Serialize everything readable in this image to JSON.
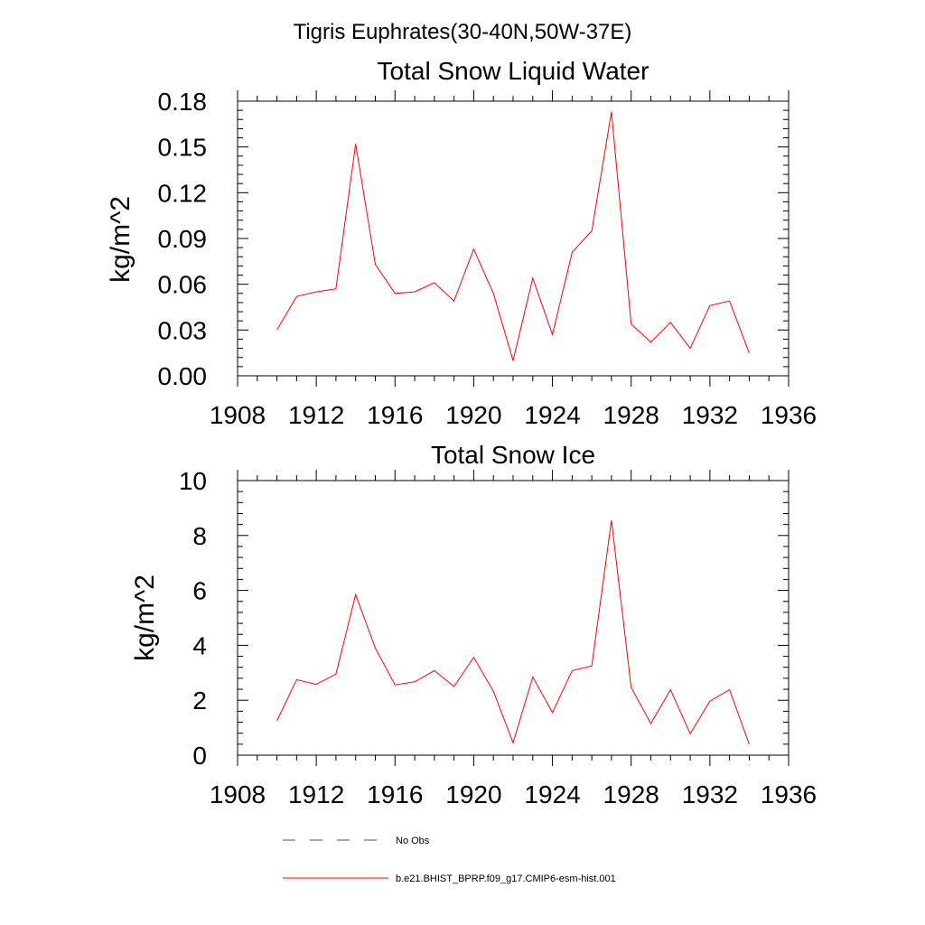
{
  "figure": {
    "main_title": "Tigris Euphrates(30-40N,50W-37E)"
  },
  "colors": {
    "series": "#ff0000",
    "obs": "#4a4a8a",
    "axis": "#000000"
  },
  "legend": {
    "entries": [
      {
        "label": "No Obs",
        "style": "dashed"
      },
      {
        "label": "b.e21.BHIST_BPRP.f09_g17.CMIP6-esm-hist.001",
        "style": "solid"
      }
    ]
  },
  "chart_data": [
    {
      "type": "line",
      "title": "Total Snow Liquid Water",
      "ylabel": "kg/m^2",
      "xlabel": "",
      "xlim": [
        1908,
        1936
      ],
      "ylim": [
        0,
        0.18
      ],
      "xticks": [
        1908,
        1912,
        1916,
        1920,
        1924,
        1928,
        1932,
        1936
      ],
      "xtick_labels": [
        "1908",
        "1912",
        "1916",
        "1920",
        "1924",
        "1928",
        "1932",
        "1936"
      ],
      "yticks": [
        0,
        0.03,
        0.06,
        0.09,
        0.12,
        0.15,
        0.18
      ],
      "ytick_labels": [
        "0.00",
        "0.03",
        "0.06",
        "0.09",
        "0.12",
        "0.15",
        "0.18"
      ],
      "grid": false,
      "series": [
        {
          "name": "b.e21.BHIST_BPRP.f09_g17.CMIP6-esm-hist.001",
          "x": [
            1910,
            1911,
            1912,
            1913,
            1914,
            1915,
            1916,
            1917,
            1918,
            1919,
            1920,
            1921,
            1922,
            1923,
            1924,
            1925,
            1926,
            1927,
            1928,
            1929,
            1930,
            1931,
            1932,
            1933,
            1934
          ],
          "y": [
            0.03,
            0.052,
            0.055,
            0.057,
            0.152,
            0.073,
            0.054,
            0.055,
            0.061,
            0.049,
            0.083,
            0.054,
            0.01,
            0.064,
            0.027,
            0.081,
            0.095,
            0.173,
            0.034,
            0.022,
            0.035,
            0.018,
            0.046,
            0.049,
            0.015
          ]
        }
      ]
    },
    {
      "type": "line",
      "title": "Total Snow Ice",
      "ylabel": "kg/m^2",
      "xlabel": "",
      "xlim": [
        1908,
        1936
      ],
      "ylim": [
        0,
        10
      ],
      "xticks": [
        1908,
        1912,
        1916,
        1920,
        1924,
        1928,
        1932,
        1936
      ],
      "xtick_labels": [
        "1908",
        "1912",
        "1916",
        "1920",
        "1924",
        "1928",
        "1932",
        "1936"
      ],
      "yticks": [
        0,
        2,
        4,
        6,
        8,
        10
      ],
      "ytick_labels": [
        "0",
        "2",
        "4",
        "6",
        "8",
        "10"
      ],
      "grid": false,
      "series": [
        {
          "name": "b.e21.BHIST_BPRP.f09_g17.CMIP6-esm-hist.001",
          "x": [
            1910,
            1911,
            1912,
            1913,
            1914,
            1915,
            1916,
            1917,
            1918,
            1919,
            1920,
            1921,
            1922,
            1923,
            1924,
            1925,
            1926,
            1927,
            1928,
            1929,
            1930,
            1931,
            1932,
            1933,
            1934
          ],
          "y": [
            1.25,
            2.75,
            2.58,
            2.95,
            5.85,
            3.9,
            2.56,
            2.67,
            3.08,
            2.5,
            3.56,
            2.33,
            0.45,
            2.85,
            1.55,
            3.08,
            3.25,
            8.55,
            2.47,
            1.15,
            2.38,
            0.78,
            1.97,
            2.38,
            0.4
          ]
        }
      ]
    }
  ]
}
